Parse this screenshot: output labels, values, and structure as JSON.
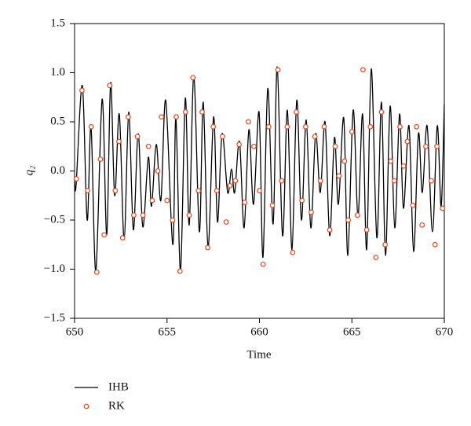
{
  "chart_data": {
    "type": "line",
    "xlabel": "Time",
    "ylabel": "q₂",
    "xlim": [
      650,
      670
    ],
    "xticks": [
      650,
      655,
      660,
      665,
      670
    ],
    "ylim": [
      -1.5,
      1.5
    ],
    "yticks": [
      {
        "value": -1.5,
        "label": "−1.5"
      },
      {
        "value": -1,
        "label": "−1.0"
      },
      {
        "value": -0.5,
        "label": "−0.5"
      },
      {
        "value": 0,
        "label": "0.0"
      },
      {
        "value": 0.5,
        "label": "0.5"
      },
      {
        "value": 1,
        "label": "1.0"
      },
      {
        "value": 1.5,
        "label": "1.5"
      }
    ],
    "legend": "bottom-left",
    "series": [
      {
        "name": "IHB",
        "type": "line",
        "color": "#000000",
        "x": [
          650.0,
          650.08,
          650.42,
          650.68,
          650.89,
          651.15,
          651.49,
          651.74,
          651.95,
          652.17,
          652.42,
          652.68,
          652.93,
          653.18,
          653.44,
          653.69,
          653.99,
          654.16,
          654.42,
          654.67,
          654.93,
          655.31,
          655.48,
          655.73,
          655.99,
          656.2,
          656.45,
          656.75,
          656.96,
          657.22,
          657.52,
          657.73,
          657.98,
          658.28,
          658.49,
          658.66,
          658.92,
          659.17,
          659.43,
          659.68,
          659.98,
          660.19,
          660.45,
          660.74,
          660.96,
          661.25,
          661.51,
          661.76,
          662.02,
          662.27,
          662.53,
          662.78,
          663.04,
          663.29,
          663.55,
          663.8,
          664.06,
          664.27,
          664.56,
          664.78,
          665.07,
          665.33,
          665.58,
          665.8,
          666.05,
          666.35,
          666.6,
          666.82,
          667.07,
          667.32,
          667.58,
          667.79,
          668.09,
          668.34,
          668.6,
          668.81,
          669.07,
          669.36,
          669.62,
          669.83,
          670.0
        ],
        "values": [
          -0.06,
          -0.15,
          0.87,
          -0.5,
          0.45,
          -1.02,
          0.73,
          -0.65,
          0.9,
          -0.25,
          0.58,
          -0.7,
          0.6,
          -0.6,
          0.38,
          -0.57,
          0.14,
          -0.36,
          0.27,
          -0.3,
          0.72,
          -0.75,
          0.54,
          -1.02,
          0.74,
          -0.55,
          0.97,
          -0.62,
          0.7,
          -0.78,
          0.55,
          -0.52,
          0.38,
          -0.22,
          0.02,
          -0.22,
          0.3,
          -0.58,
          0.42,
          -0.34,
          0.6,
          -0.88,
          0.84,
          -0.54,
          1.06,
          -0.66,
          0.62,
          -0.8,
          0.72,
          -0.5,
          0.52,
          -0.58,
          0.38,
          -0.22,
          0.5,
          -0.66,
          0.34,
          -0.34,
          0.54,
          -0.86,
          0.62,
          -0.46,
          0.58,
          -0.8,
          1.04,
          -0.68,
          0.7,
          -0.86,
          0.66,
          -0.58,
          0.58,
          -0.38,
          0.46,
          -0.82,
          0.38,
          -0.22,
          0.46,
          -0.62,
          0.46,
          -0.36,
          0.68
        ]
      },
      {
        "name": "RK",
        "type": "scatter",
        "color": "#e8461e",
        "x": [
          650.1,
          650.4,
          650.7,
          650.9,
          651.2,
          651.4,
          651.6,
          651.9,
          652.2,
          652.4,
          652.6,
          652.9,
          653.2,
          653.4,
          653.7,
          654.0,
          654.2,
          654.5,
          654.7,
          655.0,
          655.3,
          655.5,
          655.7,
          656.0,
          656.2,
          656.4,
          656.7,
          656.9,
          657.2,
          657.5,
          657.7,
          658.0,
          658.2,
          658.4,
          658.7,
          658.9,
          659.2,
          659.4,
          659.7,
          660.0,
          660.2,
          660.5,
          660.7,
          661.0,
          661.2,
          661.5,
          661.8,
          662.0,
          662.3,
          662.5,
          662.8,
          663.0,
          663.3,
          663.5,
          663.8,
          664.1,
          664.3,
          664.6,
          664.8,
          665.0,
          665.3,
          665.6,
          665.8,
          666.0,
          666.3,
          666.6,
          666.8,
          667.1,
          667.3,
          667.6,
          667.8,
          668.0,
          668.3,
          668.5,
          668.8,
          669.0,
          669.3,
          669.5,
          669.6,
          669.9
        ],
        "values": [
          -0.08,
          0.82,
          -0.2,
          0.45,
          -1.03,
          0.12,
          -0.65,
          0.87,
          -0.2,
          0.3,
          -0.68,
          0.55,
          -0.45,
          0.35,
          -0.45,
          0.25,
          -0.3,
          0.0,
          0.55,
          -0.3,
          -0.5,
          0.55,
          -1.02,
          0.6,
          -0.45,
          0.95,
          -0.2,
          0.6,
          -0.78,
          0.45,
          -0.2,
          0.35,
          -0.52,
          -0.15,
          -0.1,
          0.27,
          -0.32,
          0.5,
          0.25,
          -0.2,
          -0.95,
          0.45,
          -0.35,
          1.03,
          -0.1,
          0.45,
          -0.83,
          0.6,
          -0.3,
          0.45,
          -0.42,
          0.35,
          -0.1,
          0.45,
          -0.6,
          0.25,
          -0.05,
          0.1,
          -0.5,
          0.4,
          -0.45,
          1.03,
          -0.6,
          0.45,
          -0.88,
          0.6,
          -0.75,
          0.1,
          -0.1,
          0.45,
          0.05,
          0.3,
          -0.35,
          0.45,
          -0.55,
          0.25,
          -0.1,
          -0.75,
          0.25,
          -0.38
        ]
      }
    ]
  }
}
